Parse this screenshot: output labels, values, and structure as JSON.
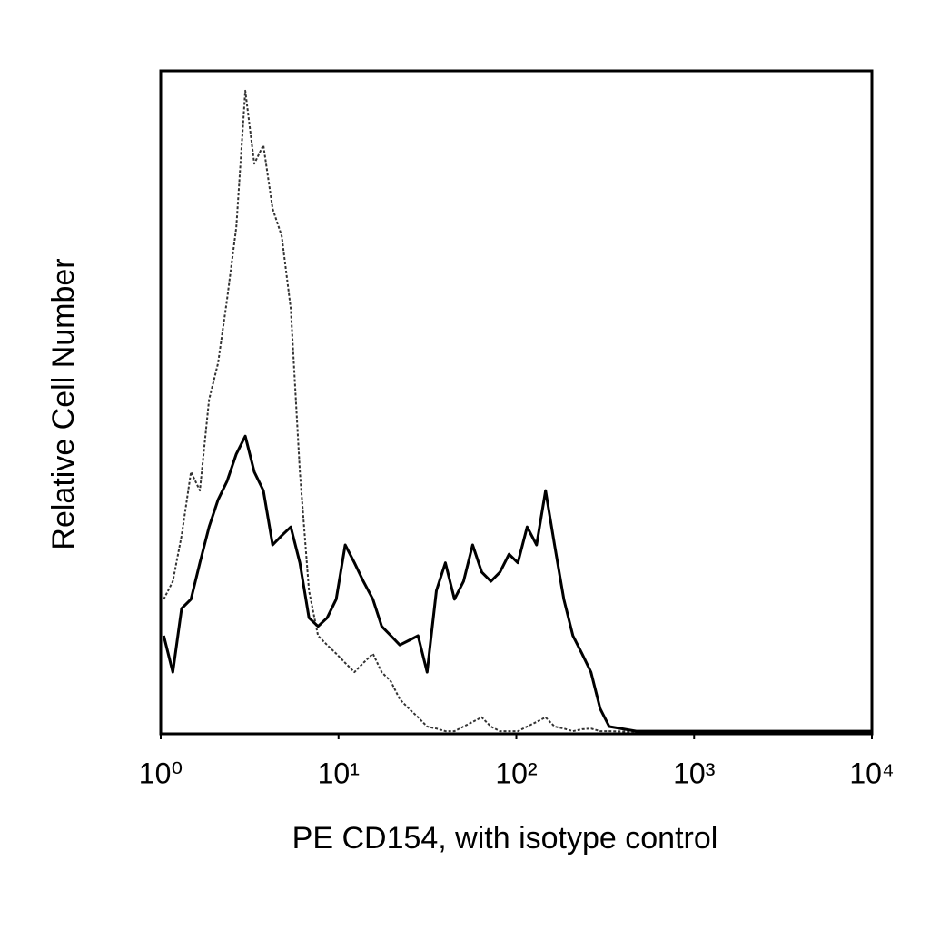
{
  "chart_data": {
    "type": "line",
    "x_label": "PE CD154, with isotype control",
    "y_label": "Relative Cell Number",
    "log_x": true,
    "xlim": [
      1,
      10000
    ],
    "xticks": [
      {
        "value": 1,
        "label": "10⁰"
      },
      {
        "value": 10,
        "label": "10¹"
      },
      {
        "value": 100,
        "label": "10²"
      },
      {
        "value": 1000,
        "label": "10³"
      },
      {
        "value": 10000,
        "label": "10⁴"
      }
    ],
    "ylim": [
      0,
      100
    ],
    "x": [
      1.04,
      1.17,
      1.31,
      1.48,
      1.66,
      1.87,
      2.1,
      2.36,
      2.66,
      2.99,
      3.36,
      3.78,
      4.26,
      4.79,
      5.39,
      6.06,
      6.82,
      7.67,
      8.63,
      9.7,
      10.9,
      12.3,
      13.8,
      15.6,
      17.5,
      19.7,
      22.1,
      24.9,
      28,
      31.5,
      35.5,
      39.9,
      44.9,
      50.5,
      56.8,
      63.9,
      71.9,
      80.9,
      91,
      102,
      115,
      130,
      146,
      164,
      185,
      208,
      234,
      263,
      296,
      333,
      473,
      1540,
      9890
    ],
    "series": [
      {
        "color": "#333333",
        "line_style": "dotted",
        "values": [
          20.3,
          23.0,
          29.9,
          39.5,
          36.7,
          50.4,
          55.9,
          65.5,
          76.4,
          97.0,
          86.0,
          88.8,
          79.2,
          75.1,
          64.1,
          39.5,
          21.6,
          14.8,
          13.4,
          12.1,
          10.7,
          9.3,
          10.7,
          12.1,
          9.3,
          7.9,
          5.2,
          3.8,
          2.5,
          1.1,
          0.8,
          0.4,
          0.4,
          1.1,
          1.8,
          2.5,
          1.1,
          0.4,
          0.4,
          0.4,
          1.1,
          1.8,
          2.5,
          1.1,
          0.8,
          0.4,
          0.7,
          0.8,
          0.4,
          0.4,
          0.3,
          0.3,
          0.3
        ]
      },
      {
        "color": "#000000",
        "line_style": "solid",
        "values": [
          14.8,
          9.3,
          18.9,
          20.3,
          25.8,
          31.2,
          35.3,
          38.1,
          42.2,
          44.9,
          39.5,
          36.7,
          28.5,
          29.9,
          31.2,
          25.8,
          17.5,
          16.2,
          17.5,
          20.3,
          28.5,
          25.8,
          23.0,
          20.3,
          16.2,
          14.8,
          13.4,
          14.1,
          14.8,
          9.3,
          21.6,
          25.8,
          20.3,
          23.0,
          28.5,
          24.4,
          23.0,
          24.4,
          27.1,
          25.8,
          31.2,
          28.5,
          36.7,
          28.5,
          20.3,
          14.8,
          12.1,
          9.3,
          3.8,
          1.1,
          0.4,
          0.4,
          0.4
        ]
      }
    ]
  }
}
